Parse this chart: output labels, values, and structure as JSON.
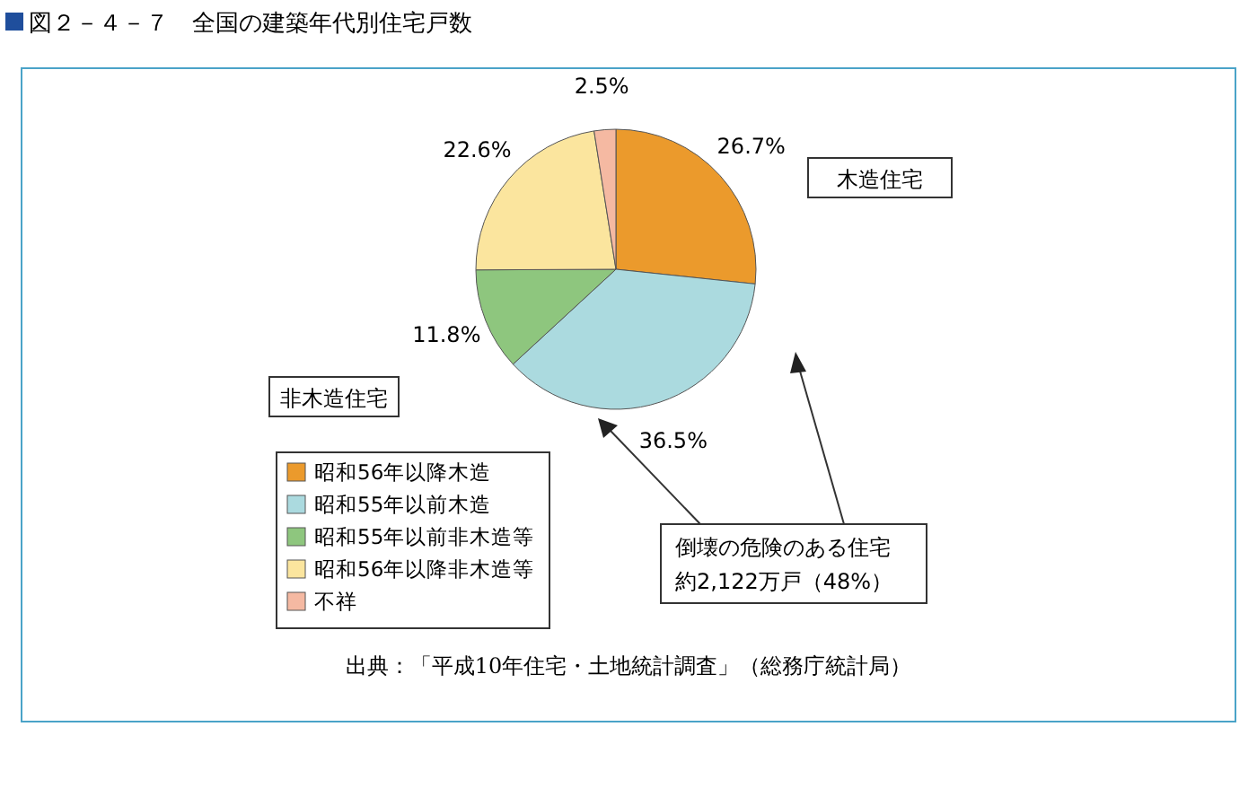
{
  "chart_data": {
    "type": "pie",
    "title": "図２－４－７　全国の建築年代別住宅戸数",
    "categories": [
      "昭和56年以降木造",
      "昭和55年以前木造",
      "昭和55年以前非木造等",
      "昭和56年以降非木造等",
      "不祥"
    ],
    "values": [
      26.7,
      36.5,
      11.8,
      22.6,
      2.5
    ],
    "colors": [
      "#eb9a2c",
      "#abdadf",
      "#8ec67e",
      "#fbe59e",
      "#f5b9a2"
    ],
    "value_labels": [
      "26.7%",
      "36.5%",
      "11.8%",
      "22.6%",
      "2.5%"
    ],
    "legend": "bottom left",
    "annotations": [
      "木造住宅",
      "非木造住宅",
      "倒壊の危険のある住宅",
      "約2,122万戸（48%）",
      "出典：「平成10年住宅・土地統計調査」（総務庁統計局）"
    ]
  }
}
